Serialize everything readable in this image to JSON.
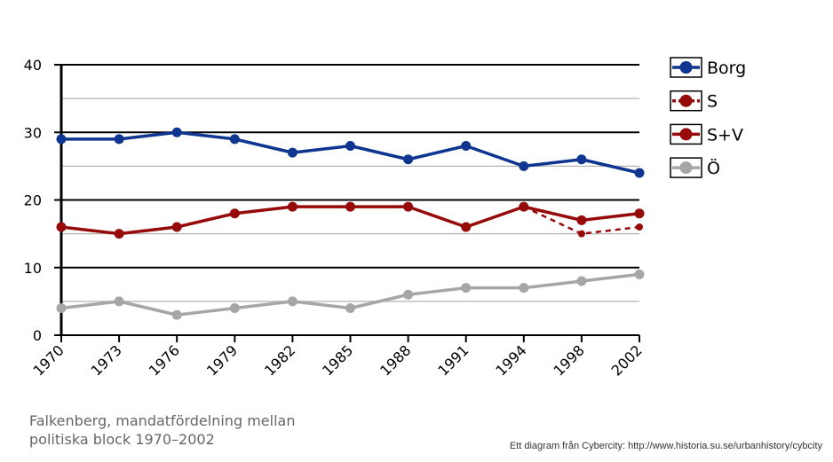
{
  "chart_data": {
    "type": "line",
    "title": "Falkenberg, mandatfördelning mellan politiska block 1970–2002",
    "categories": [
      "1970",
      "1973",
      "1976",
      "1979",
      "1982",
      "1985",
      "1988",
      "1991",
      "1994",
      "1998",
      "2002"
    ],
    "ylim": [
      0,
      40
    ],
    "yticks": [
      0,
      10,
      20,
      30,
      40
    ],
    "minor_gridlines": [
      5,
      15,
      25,
      35
    ],
    "legend_position": "right",
    "series": [
      {
        "name": "Borg",
        "color": "#0e3590",
        "dashed": false,
        "values": [
          29,
          29,
          30,
          29,
          27,
          28,
          26,
          28,
          25,
          26,
          24
        ]
      },
      {
        "name": "S",
        "color": "#960a0a",
        "dashed": true,
        "values": [
          null,
          null,
          null,
          null,
          null,
          null,
          null,
          null,
          19,
          15,
          16
        ]
      },
      {
        "name": "S+V",
        "color": "#960a0a",
        "dashed": false,
        "values": [
          16,
          15,
          16,
          18,
          19,
          19,
          19,
          16,
          19,
          17,
          18
        ]
      },
      {
        "name": "Ö",
        "color": "#a6a6a6",
        "dashed": false,
        "values": [
          4,
          5,
          3,
          4,
          5,
          4,
          6,
          7,
          7,
          8,
          9
        ]
      }
    ]
  },
  "caption": {
    "line1": "Falkenberg, mandatfördelning mellan",
    "line2": "politiska block 1970–2002"
  },
  "credit": "Ett diagram från Cybercity: http://www.historia.su.se/urbanhistory/cybcity"
}
